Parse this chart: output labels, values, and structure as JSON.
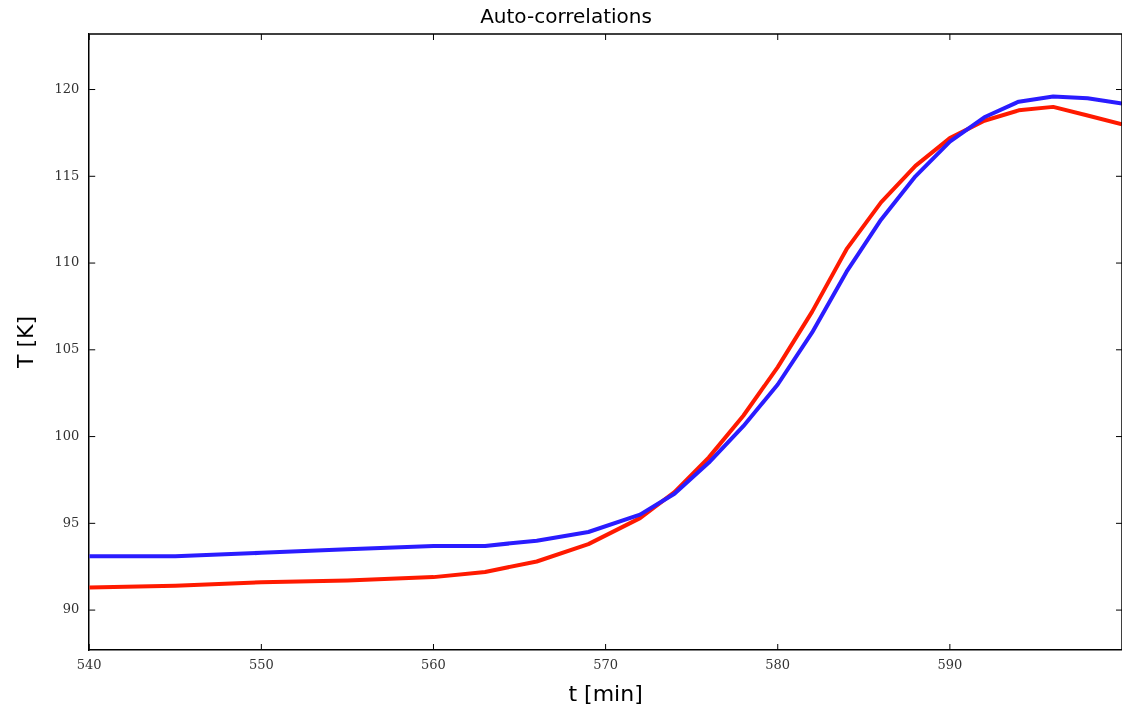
{
  "chart_data": {
    "type": "line",
    "title": "Auto-correlations",
    "xlabel": "t [min]",
    "ylabel": "T [K]",
    "xlim": [
      540,
      600
    ],
    "ylim": [
      87.7,
      123.2
    ],
    "xticks": [
      540,
      550,
      560,
      570,
      580,
      590
    ],
    "yticks": [
      90,
      95,
      100,
      105,
      110,
      115,
      120
    ],
    "grid": false,
    "legend": false,
    "marker": "none",
    "line_style": "solid",
    "series": [
      {
        "color": "#2a1cff",
        "x": [
          540,
          545,
          550,
          555,
          560,
          563,
          566,
          569,
          572,
          574,
          576,
          578,
          580,
          582,
          584,
          586,
          588,
          590,
          592,
          594,
          596,
          598,
          600
        ],
        "values": [
          93.1,
          93.1,
          93.3,
          93.5,
          93.7,
          93.7,
          94.0,
          94.5,
          95.5,
          96.7,
          98.5,
          100.6,
          103.0,
          106.0,
          109.5,
          112.5,
          115.0,
          117.0,
          118.4,
          119.3,
          119.6,
          119.5,
          119.2
        ]
      },
      {
        "color": "#ff1a00",
        "x": [
          540,
          545,
          550,
          555,
          560,
          563,
          566,
          569,
          572,
          574,
          576,
          578,
          580,
          582,
          584,
          586,
          588,
          590,
          592,
          594,
          596,
          598,
          600
        ],
        "values": [
          91.3,
          91.4,
          91.6,
          91.7,
          91.9,
          92.2,
          92.8,
          93.8,
          95.3,
          96.8,
          98.8,
          101.2,
          104.0,
          107.2,
          110.8,
          113.5,
          115.6,
          117.2,
          118.2,
          118.8,
          119.0,
          118.5,
          118.0
        ]
      }
    ]
  }
}
